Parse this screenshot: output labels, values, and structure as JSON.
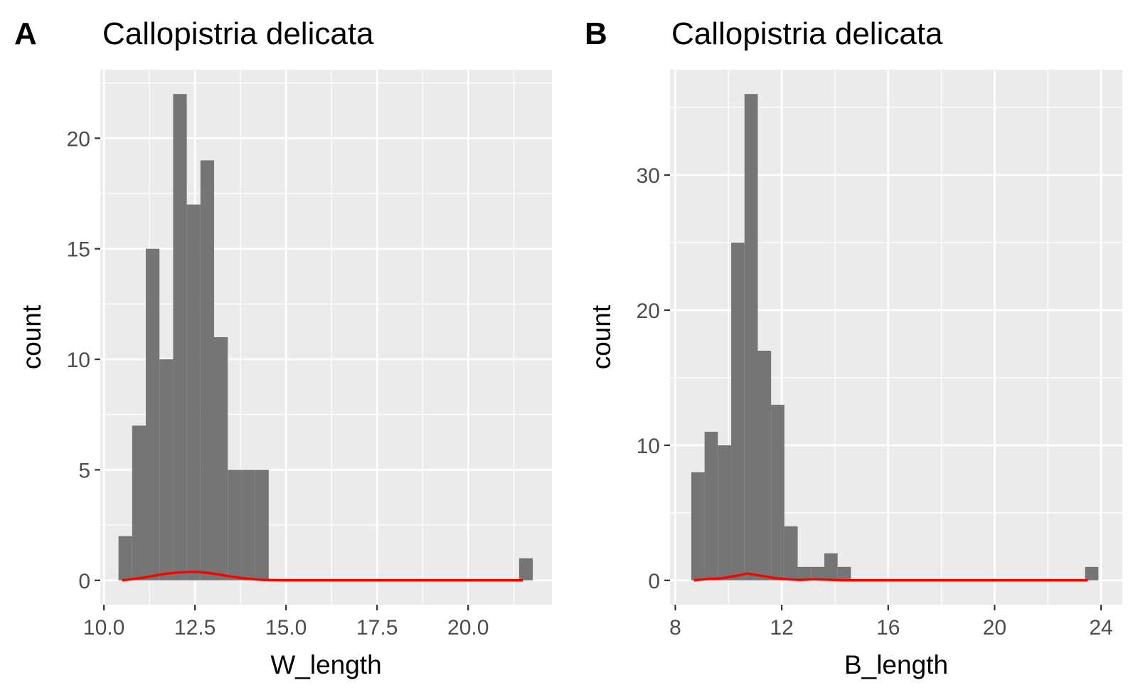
{
  "chart_data": [
    {
      "panel": "A",
      "type": "bar",
      "title": "Callopistria delicata",
      "xlabel": "W_length",
      "ylabel": "count",
      "xlim": [
        9.9,
        22.3
      ],
      "ylim": [
        -1.1,
        23.1
      ],
      "xticks": [
        10.0,
        12.5,
        15.0,
        17.5,
        20.0
      ],
      "xtick_labels": [
        "10.0",
        "12.5",
        "15.0",
        "17.5",
        "20.0"
      ],
      "yticks": [
        0,
        5,
        10,
        15,
        20
      ],
      "ytick_labels": [
        "0",
        "5",
        "10",
        "15",
        "20"
      ],
      "bin_width": 0.375,
      "bin_starts": [
        10.4,
        10.775,
        11.15,
        11.525,
        11.9,
        12.275,
        12.65,
        13.025,
        13.4,
        13.775,
        14.15,
        14.525,
        21.4
      ],
      "values": [
        2,
        7,
        15,
        10,
        22,
        17,
        19,
        11,
        5,
        5,
        5,
        0,
        1
      ],
      "bar_color": "#757575",
      "density_color": "#ff0000",
      "density_curve": {
        "x": [
          10.5,
          10.8,
          11.1,
          11.4,
          11.7,
          12.0,
          12.3,
          12.6,
          12.9,
          13.2,
          13.5,
          13.8,
          14.1,
          14.4,
          14.7,
          15.0,
          21.5
        ],
        "y": [
          0.0,
          0.06,
          0.13,
          0.22,
          0.3,
          0.35,
          0.38,
          0.38,
          0.33,
          0.25,
          0.17,
          0.1,
          0.05,
          0.02,
          0.01,
          0.0,
          0.0
        ]
      },
      "grid": true
    },
    {
      "panel": "B",
      "type": "bar",
      "title": "Callopistria delicata",
      "xlabel": "B_length",
      "ylabel": "count",
      "xlim": [
        7.8,
        24.8
      ],
      "ylim": [
        -1.8,
        37.8
      ],
      "xticks": [
        8,
        12,
        16,
        20,
        24
      ],
      "xtick_labels": [
        "8",
        "12",
        "16",
        "20",
        "24"
      ],
      "yticks": [
        0,
        10,
        20,
        30
      ],
      "ytick_labels": [
        "0",
        "10",
        "20",
        "30"
      ],
      "bin_width": 0.5,
      "bin_starts": [
        8.6,
        9.1,
        9.6,
        10.1,
        10.6,
        11.1,
        11.6,
        12.1,
        12.6,
        13.1,
        13.6,
        14.1,
        23.4
      ],
      "values": [
        8,
        11,
        10,
        25,
        36,
        17,
        13,
        4,
        1,
        1,
        2,
        1,
        1
      ],
      "bar_color": "#757575",
      "density_color": "#ff0000",
      "density_curve": {
        "x": [
          8.7,
          9.2,
          9.7,
          10.2,
          10.7,
          11.2,
          11.7,
          12.2,
          12.7,
          13.2,
          13.7,
          14.2,
          14.7,
          23.5
        ],
        "y": [
          0.0,
          0.1,
          0.15,
          0.3,
          0.5,
          0.35,
          0.18,
          0.08,
          0.03,
          0.08,
          0.05,
          0.01,
          0.0,
          0.0
        ]
      },
      "grid": true
    }
  ]
}
